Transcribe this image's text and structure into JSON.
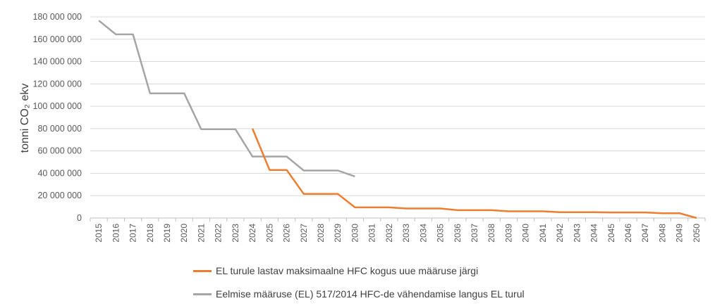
{
  "chart_data": {
    "type": "line",
    "ylabel": "tonni CO₂ ekv",
    "ylim": [
      0,
      180000000
    ],
    "yticks": [
      "0",
      "20 000 000",
      "40 000 000",
      "60 000 000",
      "80 000 000",
      "100 000 000",
      "120 000 000",
      "140 000 000",
      "160 000 000",
      "180 000 000"
    ],
    "x": [
      2015,
      2016,
      2017,
      2018,
      2019,
      2020,
      2021,
      2022,
      2023,
      2024,
      2025,
      2026,
      2027,
      2028,
      2029,
      2030,
      2031,
      2032,
      2033,
      2034,
      2035,
      2036,
      2037,
      2038,
      2039,
      2040,
      2041,
      2042,
      2043,
      2044,
      2045,
      2046,
      2047,
      2048,
      2049,
      2050
    ],
    "grid": true,
    "legend_position": "bottom",
    "series": [
      {
        "name": "EL turule lastav maksimaalne HFC kogus uue määruse järgi",
        "color": "#ed7d31",
        "x": [
          2024,
          2025,
          2026,
          2027,
          2028,
          2029,
          2030,
          2031,
          2032,
          2033,
          2034,
          2035,
          2036,
          2037,
          2038,
          2039,
          2040,
          2041,
          2042,
          2043,
          2044,
          2045,
          2046,
          2047,
          2048,
          2049,
          2050
        ],
        "values": [
          80000000,
          43000000,
          43000000,
          21500000,
          21500000,
          21500000,
          9500000,
          9500000,
          9500000,
          8500000,
          8500000,
          8500000,
          7000000,
          7000000,
          7000000,
          6000000,
          6000000,
          6000000,
          5200000,
          5200000,
          5200000,
          5000000,
          5000000,
          5000000,
          4300000,
          4300000,
          0
        ]
      },
      {
        "name": "Eelmise määruse (EL) 517/2014 HFC-de vähendamise langus EL turul",
        "color": "#a5a5a5",
        "x": [
          2015,
          2016,
          2017,
          2018,
          2019,
          2020,
          2021,
          2022,
          2023,
          2024,
          2025,
          2026,
          2027,
          2028,
          2029,
          2030
        ],
        "values": [
          176700000,
          164300000,
          164300000,
          111600000,
          111600000,
          111600000,
          79400000,
          79400000,
          79400000,
          55000000,
          55000000,
          55000000,
          42500000,
          42500000,
          42500000,
          37200000
        ]
      }
    ]
  }
}
